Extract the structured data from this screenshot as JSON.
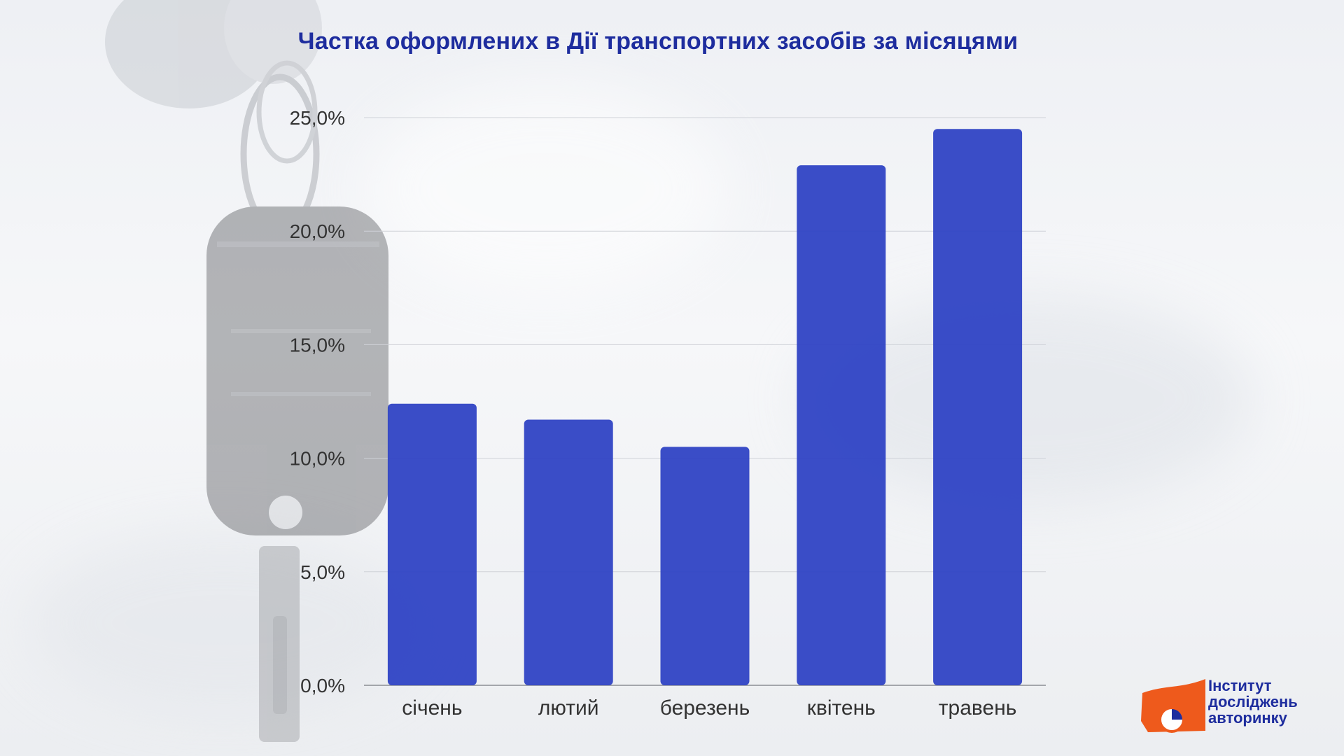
{
  "chart_data": {
    "type": "bar",
    "title": "Частка оформлених в Дії транспортних засобів за місяцями",
    "categories": [
      "січень",
      "лютий",
      "березень",
      "квітень",
      "травень"
    ],
    "values": [
      12.4,
      11.7,
      10.5,
      22.9,
      24.5
    ],
    "ylim": [
      0,
      25
    ],
    "yticks": [
      0,
      5,
      10,
      15,
      20,
      25
    ],
    "ytick_labels": [
      "0,0%",
      "5,0%",
      "10,0%",
      "15,0%",
      "20,0%",
      "25,0%"
    ],
    "xlabel": "",
    "ylabel": "",
    "grid": true,
    "legend": "none",
    "bar_color": "#2f43c4"
  },
  "logo": {
    "lines": [
      "Інститут",
      "досліджень",
      "авторинку"
    ],
    "colors": {
      "orange": "#ee5a1c",
      "blue": "#1e2d9e"
    }
  }
}
